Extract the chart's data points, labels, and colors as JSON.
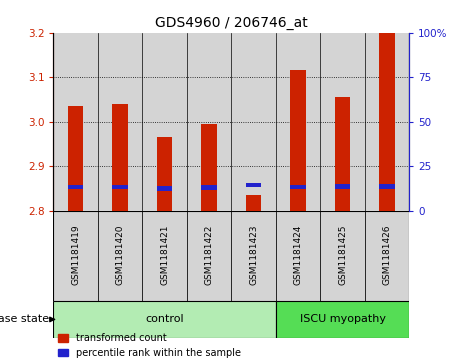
{
  "title": "GDS4960 / 206746_at",
  "samples": [
    "GSM1181419",
    "GSM1181420",
    "GSM1181421",
    "GSM1181422",
    "GSM1181423",
    "GSM1181424",
    "GSM1181425",
    "GSM1181426"
  ],
  "red_values": [
    3.035,
    3.04,
    2.965,
    2.995,
    2.835,
    3.115,
    3.055,
    3.2
  ],
  "blue_values": [
    2.853,
    2.853,
    2.85,
    2.852,
    2.858,
    2.853,
    2.854,
    2.854
  ],
  "y_min": 2.8,
  "y_max": 3.2,
  "y_ticks": [
    2.8,
    2.9,
    3.0,
    3.1,
    3.2
  ],
  "right_y_ticks": [
    0,
    25,
    50,
    75,
    100
  ],
  "right_y_labels": [
    "0",
    "25",
    "50",
    "75",
    "100%"
  ],
  "control_count": 5,
  "disease_count": 3,
  "control_label": "control",
  "disease_label": "ISCU myopathy",
  "disease_state_label": "disease state",
  "control_color": "#b3ecb3",
  "disease_color": "#55dd55",
  "bar_bg_color": "#d4d4d4",
  "red_color": "#cc2200",
  "blue_color": "#2222cc",
  "legend_red": "transformed count",
  "legend_blue": "percentile rank within the sample",
  "title_fontsize": 10,
  "tick_fontsize": 7.5,
  "sample_fontsize": 6.5
}
